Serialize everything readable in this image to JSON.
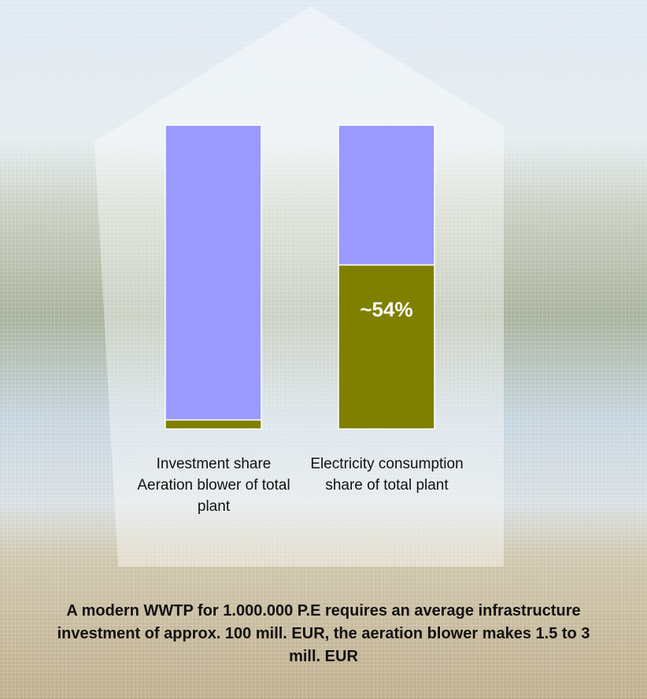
{
  "chart_data": {
    "type": "stacked_bar",
    "categories": [
      "Investment share Aeration blower of total plant",
      "Electricity consumption share of total plant"
    ],
    "series": [
      {
        "color": "#808000",
        "values": [
          3,
          54
        ],
        "value_labels": [
          "~3%",
          "~54%"
        ]
      },
      {
        "color": "#9999ff",
        "values": [
          97,
          46
        ]
      }
    ],
    "caption": "A modern WWTP for 1.000.000 P.E  requires an average infrastructure investment of approx. 100 mill. EUR, the aeration blower makes 1.5 to 3 mill. EUR"
  }
}
